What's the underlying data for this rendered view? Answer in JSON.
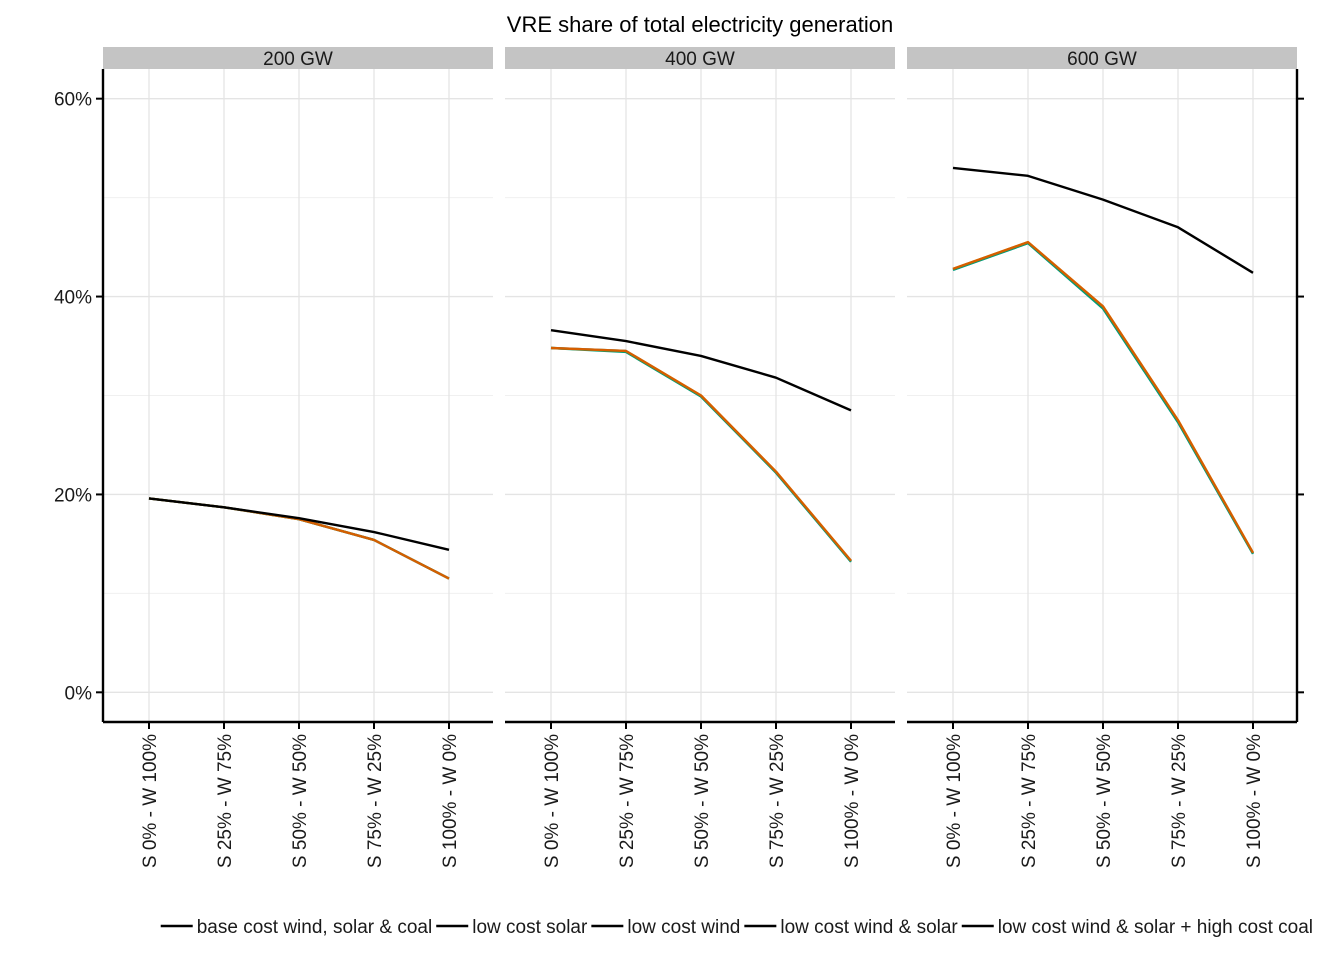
{
  "chart_data": {
    "type": "line",
    "title": "VRE share of total electricity generation",
    "xlabel": "",
    "ylabel": "",
    "ylim": [
      -0.03,
      0.63
    ],
    "yticks": [
      0,
      0.2,
      0.4,
      0.6
    ],
    "ytick_labels": [
      "0%",
      "20%",
      "40%",
      "60%"
    ],
    "grid": true,
    "legend_position": "bottom",
    "categories": [
      "S 0% - W 100%",
      "S 25% - W 75%",
      "S 50% - W 50%",
      "S 75% - W 25%",
      "S 100% - W 0%"
    ],
    "facets": [
      {
        "label": "200 GW",
        "series": [
          {
            "name": "base cost wind, solar & coal",
            "color": "#000000",
            "values": [
              0.196,
              0.187,
              0.176,
              0.162,
              0.144
            ]
          },
          {
            "name": "low cost solar",
            "color": "#e69f00",
            "values": [
              0.196,
              0.187,
              0.175,
              0.154,
              0.115
            ]
          },
          {
            "name": "low cost wind",
            "color": "#56b4e9",
            "values": [
              0.196,
              0.187,
              0.175,
              0.154,
              0.115
            ]
          },
          {
            "name": "low cost wind & solar",
            "color": "#009e73",
            "values": [
              0.196,
              0.187,
              0.175,
              0.154,
              0.115
            ]
          },
          {
            "name": "low cost wind & solar + high cost coal",
            "color": "#d55e00",
            "values": [
              0.196,
              0.187,
              0.175,
              0.154,
              0.115
            ]
          }
        ]
      },
      {
        "label": "400 GW",
        "series": [
          {
            "name": "base cost wind, solar & coal",
            "color": "#000000",
            "values": [
              0.366,
              0.355,
              0.34,
              0.318,
              0.285
            ]
          },
          {
            "name": "low cost solar",
            "color": "#e69f00",
            "values": [
              0.348,
              0.345,
              0.3,
              0.223,
              0.133
            ]
          },
          {
            "name": "low cost wind",
            "color": "#56b4e9",
            "values": [
              0.348,
              0.345,
              0.299,
              0.222,
              0.132
            ]
          },
          {
            "name": "low cost wind & solar",
            "color": "#009e73",
            "values": [
              0.348,
              0.344,
              0.299,
              0.222,
              0.132
            ]
          },
          {
            "name": "low cost wind & solar + high cost coal",
            "color": "#d55e00",
            "values": [
              0.348,
              0.345,
              0.3,
              0.223,
              0.133
            ]
          }
        ]
      },
      {
        "label": "600 GW",
        "series": [
          {
            "name": "base cost wind, solar & coal",
            "color": "#000000",
            "values": [
              0.53,
              0.522,
              0.498,
              0.47,
              0.424
            ]
          },
          {
            "name": "low cost solar",
            "color": "#e69f00",
            "values": [
              0.428,
              0.455,
              0.39,
              0.275,
              0.141
            ]
          },
          {
            "name": "low cost wind",
            "color": "#56b4e9",
            "values": [
              0.427,
              0.454,
              0.388,
              0.273,
              0.14
            ]
          },
          {
            "name": "low cost wind & solar",
            "color": "#009e73",
            "values": [
              0.427,
              0.454,
              0.388,
              0.273,
              0.14
            ]
          },
          {
            "name": "low cost wind & solar + high cost coal",
            "color": "#d55e00",
            "values": [
              0.428,
              0.455,
              0.39,
              0.275,
              0.141
            ]
          }
        ]
      }
    ],
    "legend": [
      "base cost wind, solar & coal",
      "low cost solar",
      "low cost wind",
      "low cost wind & solar",
      "low cost wind & solar + high cost coal"
    ],
    "legend_key_color": "#000000"
  }
}
